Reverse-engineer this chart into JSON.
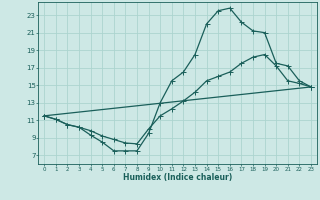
{
  "xlabel": "Humidex (Indice chaleur)",
  "bg_color": "#cde8e5",
  "grid_color": "#acd4cf",
  "line_color": "#1a5f5a",
  "xlim": [
    -0.5,
    23.5
  ],
  "ylim": [
    6.0,
    24.5
  ],
  "xticks": [
    0,
    1,
    2,
    3,
    4,
    5,
    6,
    7,
    8,
    9,
    10,
    11,
    12,
    13,
    14,
    15,
    16,
    17,
    18,
    19,
    20,
    21,
    22,
    23
  ],
  "yticks": [
    7,
    9,
    11,
    13,
    15,
    17,
    19,
    21,
    23
  ],
  "line1_x": [
    0,
    1,
    2,
    3,
    4,
    5,
    6,
    7,
    8,
    9,
    10,
    11,
    12,
    13,
    14,
    15,
    16,
    17,
    18,
    19,
    20,
    21,
    22,
    23
  ],
  "line1_y": [
    11.5,
    11.1,
    10.5,
    10.2,
    9.3,
    8.5,
    7.5,
    7.5,
    7.5,
    9.5,
    13.0,
    15.5,
    16.5,
    18.5,
    22.0,
    23.5,
    23.8,
    22.2,
    21.2,
    21.0,
    17.5,
    17.2,
    15.5,
    14.8
  ],
  "line2_x": [
    0,
    1,
    2,
    3,
    4,
    5,
    6,
    7,
    8,
    9,
    10,
    11,
    12,
    13,
    14,
    15,
    16,
    17,
    18,
    19,
    20,
    21,
    22,
    23
  ],
  "line2_y": [
    11.5,
    11.1,
    10.5,
    10.2,
    9.8,
    9.2,
    8.8,
    8.4,
    8.3,
    10.0,
    11.5,
    12.3,
    13.2,
    14.2,
    15.5,
    16.0,
    16.5,
    17.5,
    18.2,
    18.5,
    17.2,
    15.5,
    15.2,
    14.8
  ],
  "line3_x": [
    0,
    23
  ],
  "line3_y": [
    11.5,
    14.8
  ],
  "marker_size": 1.8,
  "linewidth": 0.9,
  "xlabel_fontsize": 5.5,
  "xtick_fontsize": 4.0,
  "ytick_fontsize": 5.0
}
